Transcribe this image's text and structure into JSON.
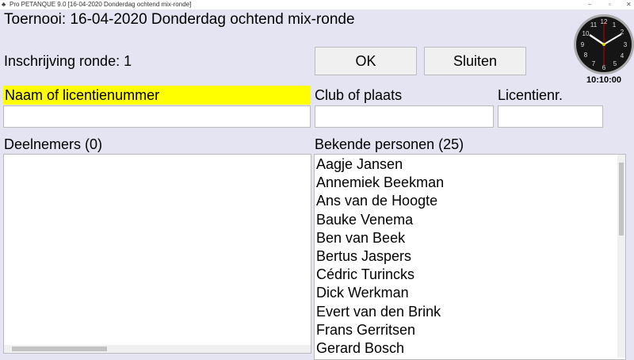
{
  "window": {
    "title": "Pro PETANQUE 9.0 [16-04-2020 Donderdag ochtend mix-ronde]",
    "minimize": "–",
    "maximize": "▫",
    "close": "✕"
  },
  "header": {
    "tournament": "Toernooi: 16-04-2020 Donderdag ochtend mix-ronde",
    "round": "Inschrijving ronde: 1",
    "clock_time": "10:10:00"
  },
  "buttons": {
    "ok": "OK",
    "close": "Sluiten"
  },
  "fields": {
    "name_label": "Naam of licentienummer",
    "name_value": "",
    "club_label": "Club of plaats",
    "club_value": "",
    "license_label": "Licentienr.",
    "license_value": ""
  },
  "colors": {
    "highlight": "#ffff00",
    "background": "#e4e4f2"
  },
  "participants": {
    "label": "Deelnemers (0)",
    "items": []
  },
  "known": {
    "label": "Bekende personen (25)",
    "items": [
      "Aagje Jansen",
      "Annemiek Beekman",
      "Ans van de Hoogte",
      "Bauke Venema",
      "Ben van Beek",
      "Bertus Jaspers",
      "Cédric Turincks",
      "Dick Werkman",
      "Evert van den Brink",
      "Frans Gerritsen",
      "Gerard Bosch"
    ]
  }
}
